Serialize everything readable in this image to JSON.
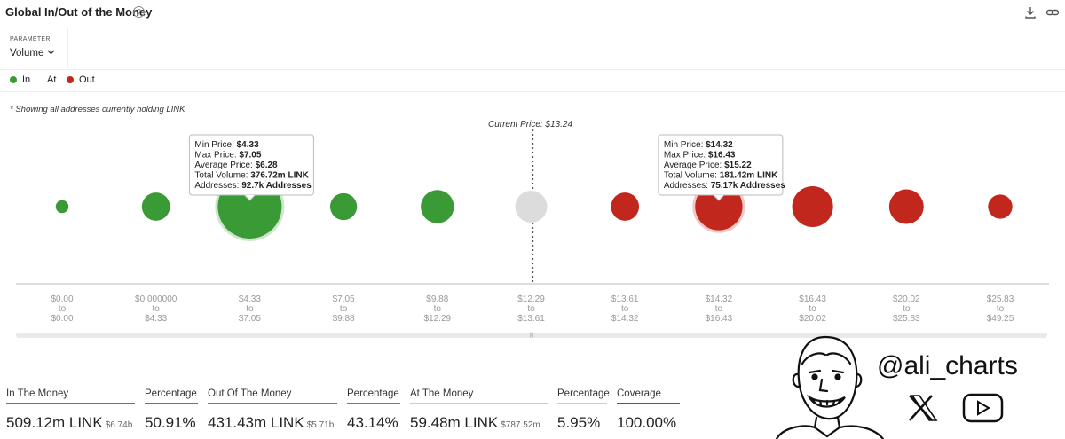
{
  "header": {
    "title": "Global In/Out of the Money",
    "help_icon": "help-circle-icon",
    "download_icon": "download-icon",
    "link_icon": "link-icon"
  },
  "parameter": {
    "label": "PARAMETER",
    "value": "Volume"
  },
  "legend": [
    {
      "label": "In",
      "color": "#3a9a35"
    },
    {
      "label": "At",
      "color": "#cfcfcf"
    },
    {
      "label": "Out",
      "color": "#c1271d"
    }
  ],
  "note": "* Showing all addresses currently holding LINK",
  "chart_data": {
    "type": "scatter",
    "current_price_label": "Current Price: $13.24",
    "current_price_after_bucket": 5,
    "buckets": [
      {
        "from": "$0.00",
        "to": "$0.00",
        "status": "in",
        "relative_size": 0.2
      },
      {
        "from": "$0.000000",
        "to": "$4.33",
        "status": "in",
        "relative_size": 0.44
      },
      {
        "from": "$4.33",
        "to": "$7.05",
        "status": "in",
        "relative_size": 1.0
      },
      {
        "from": "$7.05",
        "to": "$9.88",
        "status": "in",
        "relative_size": 0.42
      },
      {
        "from": "$9.88",
        "to": "$12.29",
        "status": "in",
        "relative_size": 0.52
      },
      {
        "from": "$12.29",
        "to": "$13.61",
        "status": "at",
        "relative_size": 0.5
      },
      {
        "from": "$13.61",
        "to": "$14.32",
        "status": "out",
        "relative_size": 0.44
      },
      {
        "from": "$14.32",
        "to": "$16.43",
        "status": "out",
        "relative_size": 0.74
      },
      {
        "from": "$16.43",
        "to": "$20.02",
        "status": "out",
        "relative_size": 0.64
      },
      {
        "from": "$20.02",
        "to": "$25.83",
        "status": "out",
        "relative_size": 0.54
      },
      {
        "from": "$25.83",
        "to": "$49.25",
        "status": "out",
        "relative_size": 0.38
      }
    ],
    "to_word": "to",
    "tooltips": [
      {
        "bucket": 2,
        "lines": [
          {
            "label": "Min Price: ",
            "value": "$4.33"
          },
          {
            "label": "Max Price: ",
            "value": "$7.05"
          },
          {
            "label": "Average Price: ",
            "value": "$6.28"
          },
          {
            "label": "Total Volume: ",
            "value": "376.72m LINK"
          },
          {
            "label": "Addresses: ",
            "value": "92.7k Addresses"
          }
        ]
      },
      {
        "bucket": 7,
        "lines": [
          {
            "label": "Min Price: ",
            "value": "$14.32"
          },
          {
            "label": "Max Price: ",
            "value": "$16.43"
          },
          {
            "label": "Average Price: ",
            "value": "$15.22"
          },
          {
            "label": "Total Volume: ",
            "value": "181.42m LINK"
          },
          {
            "label": "Addresses: ",
            "value": "75.17k Addresses"
          }
        ]
      }
    ],
    "colors": {
      "in": "#3a9a35",
      "at": "#dcdcdc",
      "out": "#c1271d"
    }
  },
  "stats": {
    "in_money": {
      "label": "In The Money",
      "value": "509.12m LINK",
      "sub": "$6.74b",
      "color": "#3a9a35"
    },
    "in_pct": {
      "label": "Percentage",
      "value": "50.91%",
      "color": "#3a9a35"
    },
    "out_money": {
      "label": "Out Of The Money",
      "value": "431.43m LINK",
      "sub": "$5.71b",
      "color": "#d0563a"
    },
    "out_pct": {
      "label": "Percentage",
      "value": "43.14%",
      "color": "#d0563a"
    },
    "at_money": {
      "label": "At The Money",
      "value": "59.48m LINK",
      "sub": "$787.52m",
      "color": "#cccccc"
    },
    "at_pct": {
      "label": "Percentage",
      "value": "5.95%",
      "color": "#cccccc"
    },
    "coverage": {
      "label": "Coverage",
      "value": "100.00%",
      "color": "#2f5fb3"
    }
  },
  "watermark": {
    "handle": "@ali_charts",
    "icons": [
      "cartoon-face-icon",
      "x-logo-icon",
      "youtube-icon"
    ]
  }
}
